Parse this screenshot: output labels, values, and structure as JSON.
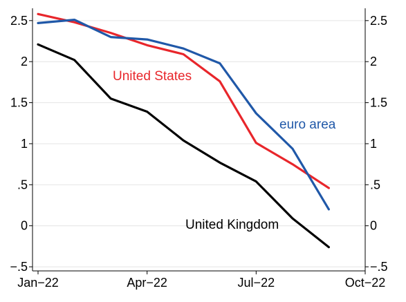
{
  "chart_data": {
    "type": "line",
    "title": "",
    "xlabel": "",
    "ylabel": "",
    "x": [
      "2022-01",
      "2022-02",
      "2022-03",
      "2022-04",
      "2022-05",
      "2022-06",
      "2022-07",
      "2022-08",
      "2022-09"
    ],
    "xlim": [
      "2022-01",
      "2022-10"
    ],
    "x_ticks": [
      {
        "x": "2022-01",
        "label": "Jan−22"
      },
      {
        "x": "2022-04",
        "label": "Apr−22"
      },
      {
        "x": "2022-07",
        "label": "Jul−22"
      },
      {
        "x": "2022-10",
        "label": "Oct−22"
      }
    ],
    "ylim": [
      -0.55,
      2.65
    ],
    "y_ticks": [
      {
        "y": 2.5,
        "label": "2.5"
      },
      {
        "y": 2,
        "label": "2"
      },
      {
        "y": 1.5,
        "label": "1.5"
      },
      {
        "y": 1,
        "label": "1"
      },
      {
        "y": 0.5,
        "label": ".5"
      },
      {
        "y": 0,
        "label": "0"
      },
      {
        "y": -0.5,
        "label": "−.5"
      }
    ],
    "y_axes": [
      "left",
      "right"
    ],
    "grid": true,
    "legend": "inline labels",
    "series": [
      {
        "name": "United States",
        "color": "#e8262b",
        "values": [
          2.58,
          2.48,
          2.35,
          2.2,
          2.09,
          1.76,
          1.01,
          0.75,
          0.46
        ]
      },
      {
        "name": "euro area",
        "color": "#2058a8",
        "values": [
          2.47,
          2.51,
          2.3,
          2.27,
          2.16,
          1.98,
          1.37,
          0.94,
          0.2
        ]
      },
      {
        "name": "United Kingdom",
        "color": "#000000",
        "values": [
          2.21,
          2.02,
          1.55,
          1.39,
          1.04,
          0.77,
          0.54,
          0.09,
          -0.26
        ]
      }
    ]
  }
}
